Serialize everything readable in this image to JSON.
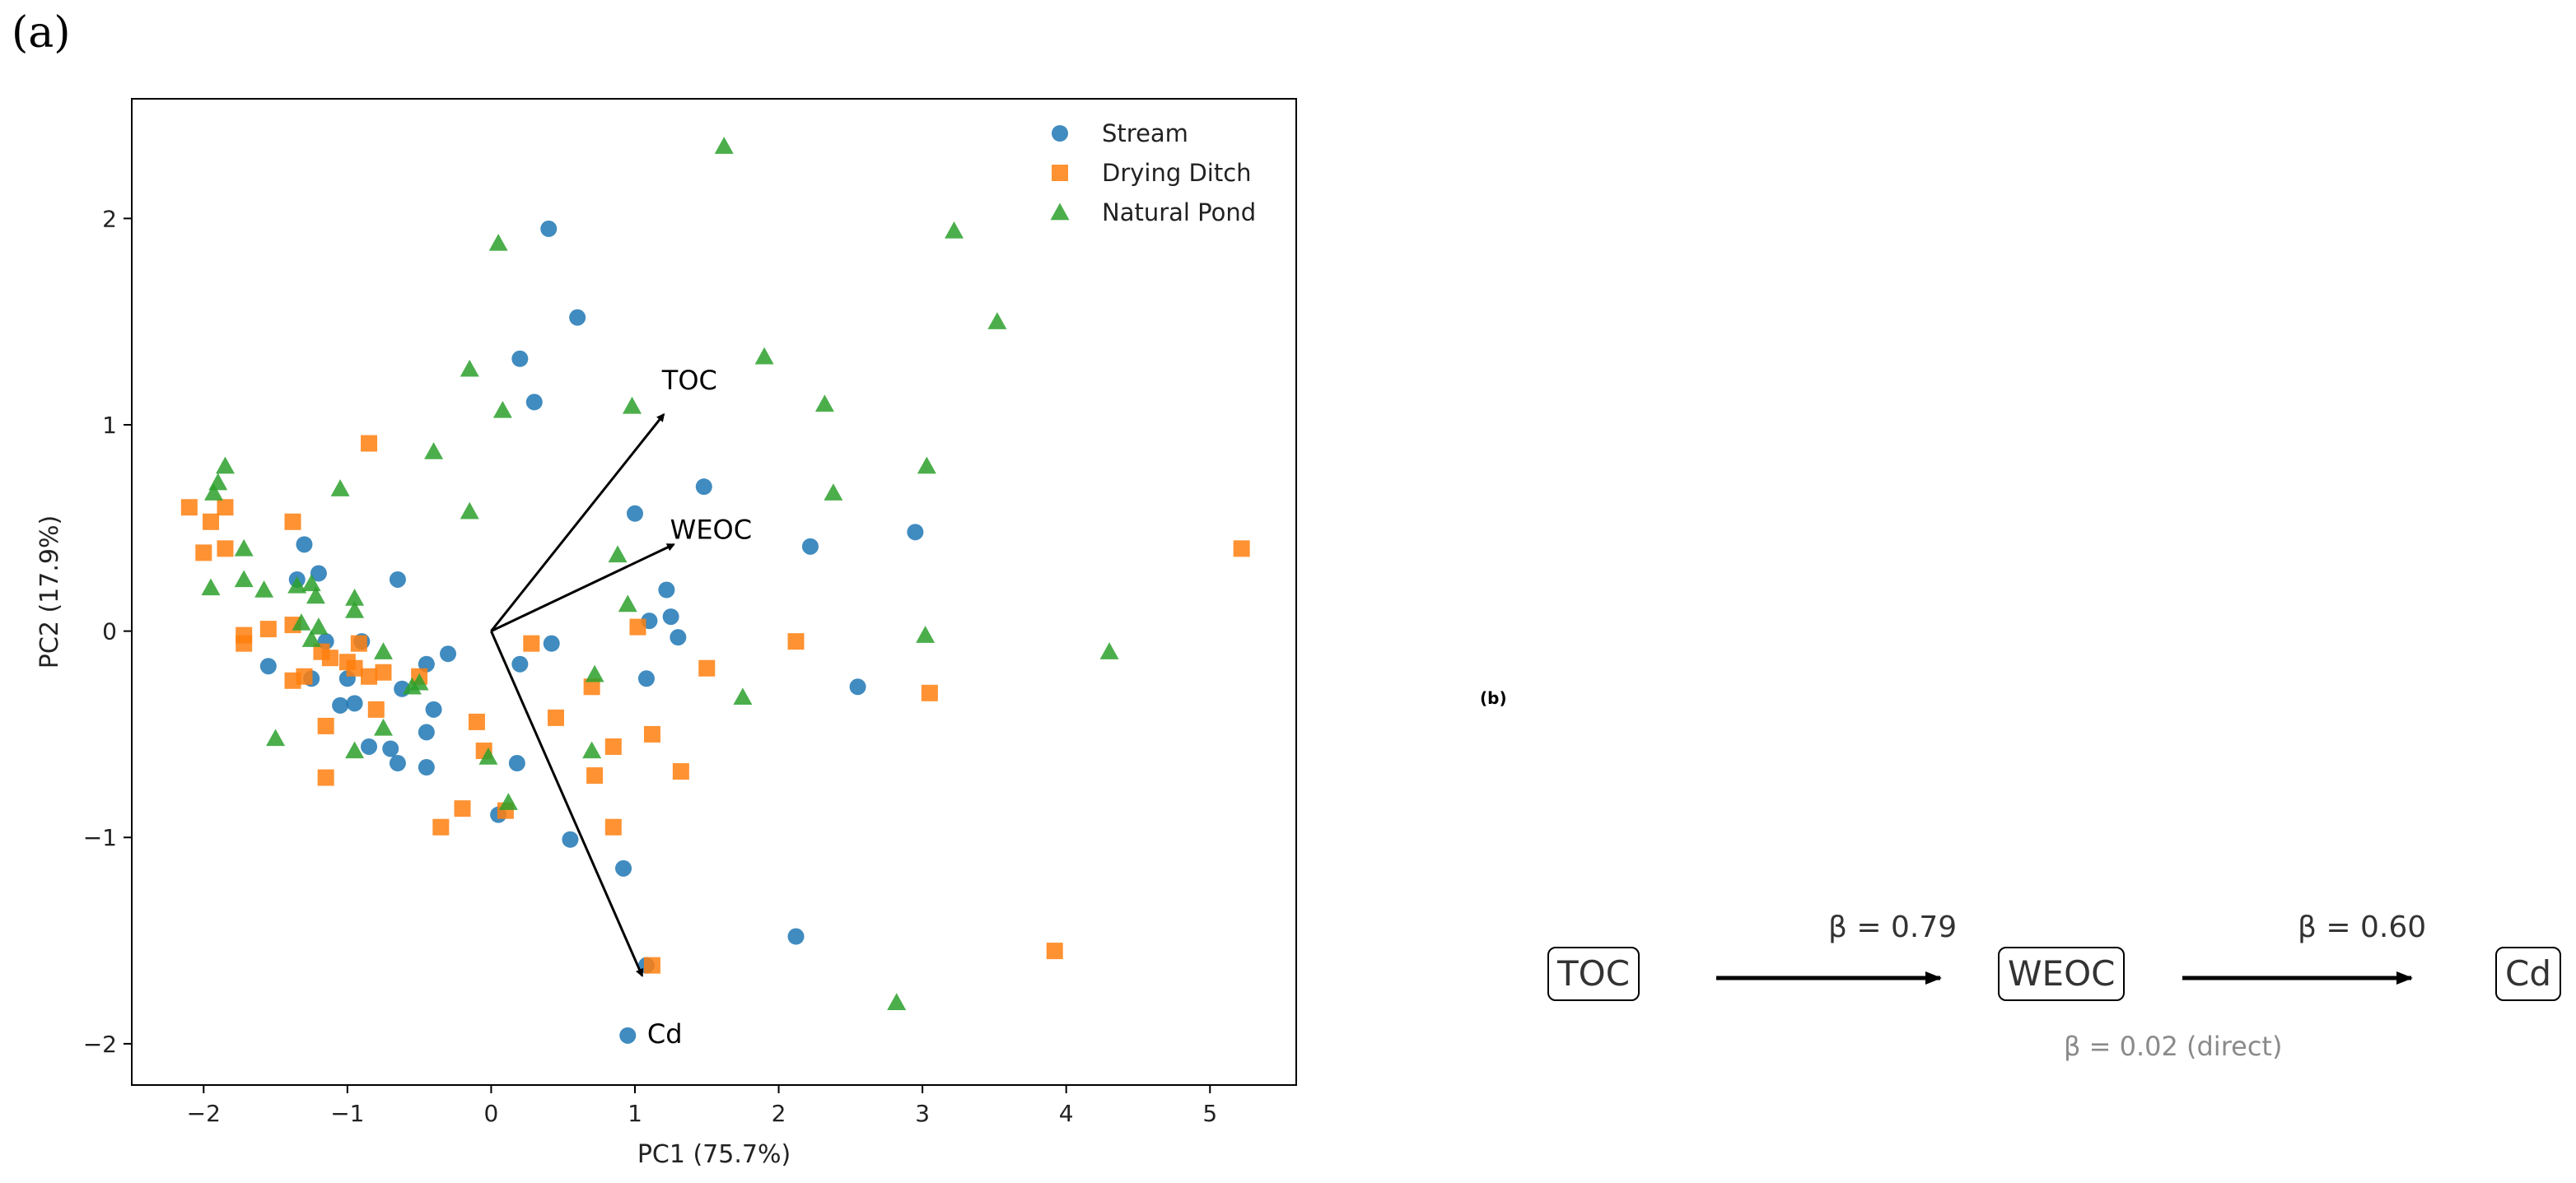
{
  "panel_a": {
    "label": "(a)"
  },
  "panel_b": {
    "label": "(b)",
    "nodes": [
      "TOC",
      "WEOC",
      "Cd"
    ],
    "paths": [
      {
        "from": "TOC",
        "to": "WEOC",
        "label": "β = 0.79"
      },
      {
        "from": "WEOC",
        "to": "Cd",
        "label": "β = 0.60"
      }
    ],
    "direct_label": "β = 0.02 (direct)"
  },
  "chart_data": {
    "type": "scatter",
    "xlabel": "PC1 (75.7%)",
    "ylabel": "PC2 (17.9%)",
    "xlim": [
      -2.5,
      5.6
    ],
    "ylim": [
      -2.2,
      2.58
    ],
    "xticks": [
      -2,
      -1,
      0,
      1,
      2,
      3,
      4,
      5
    ],
    "xtick_labels": [
      "−2",
      "−1",
      "0",
      "1",
      "2",
      "3",
      "4",
      "5"
    ],
    "yticks": [
      -2,
      -1,
      0,
      1,
      2
    ],
    "ytick_labels": [
      "−2",
      "−1",
      "0",
      "1",
      "2"
    ],
    "legend_position": "top-right",
    "series": [
      {
        "name": "Stream",
        "marker": "circle",
        "color": "#1f77b4",
        "points": [
          [
            0.4,
            1.95
          ],
          [
            0.6,
            1.52
          ],
          [
            0.2,
            1.32
          ],
          [
            0.3,
            1.11
          ],
          [
            1.0,
            0.57
          ],
          [
            1.48,
            0.7
          ],
          [
            2.22,
            0.41
          ],
          [
            2.95,
            0.48
          ],
          [
            -1.3,
            0.42
          ],
          [
            -1.2,
            0.28
          ],
          [
            -1.35,
            0.25
          ],
          [
            -0.65,
            0.25
          ],
          [
            1.22,
            0.2
          ],
          [
            1.25,
            0.07
          ],
          [
            1.1,
            0.05
          ],
          [
            1.3,
            -0.03
          ],
          [
            0.42,
            -0.06
          ],
          [
            -1.15,
            -0.05
          ],
          [
            -0.9,
            -0.05
          ],
          [
            -1.0,
            -0.23
          ],
          [
            -0.3,
            -0.11
          ],
          [
            -0.45,
            -0.16
          ],
          [
            -1.55,
            -0.17
          ],
          [
            -1.25,
            -0.23
          ],
          [
            -0.62,
            -0.28
          ],
          [
            1.08,
            -0.23
          ],
          [
            0.2,
            -0.16
          ],
          [
            2.55,
            -0.27
          ],
          [
            -1.05,
            -0.36
          ],
          [
            -0.95,
            -0.35
          ],
          [
            -0.4,
            -0.38
          ],
          [
            -0.45,
            -0.49
          ],
          [
            -0.7,
            -0.57
          ],
          [
            -0.85,
            -0.56
          ],
          [
            -0.65,
            -0.64
          ],
          [
            -0.45,
            -0.66
          ],
          [
            0.18,
            -0.64
          ],
          [
            0.05,
            -0.89
          ],
          [
            0.55,
            -1.01
          ],
          [
            0.92,
            -1.15
          ],
          [
            1.08,
            -1.62
          ],
          [
            2.12,
            -1.48
          ],
          [
            0.95,
            -1.96
          ]
        ]
      },
      {
        "name": "Drying Ditch",
        "marker": "square",
        "color": "#ff7f0e",
        "points": [
          [
            -2.1,
            0.6
          ],
          [
            -2.0,
            0.38
          ],
          [
            -1.95,
            0.53
          ],
          [
            -1.85,
            0.6
          ],
          [
            -1.85,
            0.4
          ],
          [
            -1.72,
            -0.02
          ],
          [
            -1.72,
            -0.06
          ],
          [
            -1.55,
            0.01
          ],
          [
            -1.38,
            0.53
          ],
          [
            -1.38,
            0.03
          ],
          [
            -1.38,
            -0.24
          ],
          [
            -1.3,
            -0.22
          ],
          [
            -1.18,
            -0.1
          ],
          [
            -1.12,
            -0.13
          ],
          [
            -1.15,
            -0.46
          ],
          [
            -1.15,
            -0.71
          ],
          [
            -1.0,
            -0.15
          ],
          [
            -0.92,
            -0.06
          ],
          [
            -0.95,
            -0.18
          ],
          [
            -0.85,
            -0.22
          ],
          [
            -0.8,
            -0.38
          ],
          [
            -0.75,
            -0.2
          ],
          [
            -0.85,
            0.91
          ],
          [
            -0.5,
            -0.22
          ],
          [
            -0.35,
            -0.95
          ],
          [
            -0.2,
            -0.86
          ],
          [
            -0.1,
            -0.44
          ],
          [
            -0.05,
            -0.58
          ],
          [
            0.1,
            -0.87
          ],
          [
            0.28,
            -0.06
          ],
          [
            0.45,
            -0.42
          ],
          [
            0.7,
            -0.27
          ],
          [
            0.72,
            -0.7
          ],
          [
            0.85,
            -0.56
          ],
          [
            0.85,
            -0.95
          ],
          [
            1.02,
            0.02
          ],
          [
            1.12,
            -0.5
          ],
          [
            1.32,
            -0.68
          ],
          [
            1.5,
            -0.18
          ],
          [
            2.12,
            -0.05
          ],
          [
            3.05,
            -0.3
          ],
          [
            3.92,
            -1.55
          ],
          [
            5.22,
            0.4
          ],
          [
            1.12,
            -1.62
          ]
        ]
      },
      {
        "name": "Natural Pond",
        "marker": "triangle",
        "color": "#2ca02c",
        "points": [
          [
            1.62,
            2.35
          ],
          [
            3.22,
            1.94
          ],
          [
            0.05,
            1.88
          ],
          [
            3.52,
            1.5
          ],
          [
            1.9,
            1.33
          ],
          [
            -0.15,
            1.27
          ],
          [
            0.08,
            1.07
          ],
          [
            0.98,
            1.09
          ],
          [
            2.32,
            1.1
          ],
          [
            -0.4,
            0.87
          ],
          [
            3.03,
            0.8
          ],
          [
            -1.85,
            0.8
          ],
          [
            -1.9,
            0.72
          ],
          [
            -1.93,
            0.67
          ],
          [
            -1.05,
            0.69
          ],
          [
            2.38,
            0.67
          ],
          [
            -0.15,
            0.58
          ],
          [
            0.88,
            0.37
          ],
          [
            -1.72,
            0.4
          ],
          [
            -1.95,
            0.21
          ],
          [
            -1.72,
            0.25
          ],
          [
            -1.58,
            0.2
          ],
          [
            -1.35,
            0.22
          ],
          [
            -1.25,
            0.23
          ],
          [
            -1.22,
            0.17
          ],
          [
            -0.95,
            0.16
          ],
          [
            -0.95,
            0.1
          ],
          [
            -1.32,
            0.04
          ],
          [
            -1.2,
            0.02
          ],
          [
            -1.25,
            -0.04
          ],
          [
            -0.75,
            -0.1
          ],
          [
            0.95,
            0.13
          ],
          [
            3.02,
            -0.02
          ],
          [
            4.3,
            -0.1
          ],
          [
            0.72,
            -0.21
          ],
          [
            1.75,
            -0.32
          ],
          [
            -0.5,
            -0.25
          ],
          [
            -0.55,
            -0.27
          ],
          [
            -0.75,
            -0.47
          ],
          [
            -0.95,
            -0.58
          ],
          [
            -1.5,
            -0.52
          ],
          [
            -0.02,
            -0.61
          ],
          [
            0.7,
            -0.58
          ],
          [
            0.12,
            -0.83
          ],
          [
            2.82,
            -1.8
          ]
        ]
      }
    ],
    "loadings": [
      {
        "name": "TOC",
        "x": 1.2,
        "y": 1.05
      },
      {
        "name": "WEOC",
        "x": 1.27,
        "y": 0.42
      },
      {
        "name": "Cd",
        "x": 1.05,
        "y": -1.67
      }
    ]
  }
}
